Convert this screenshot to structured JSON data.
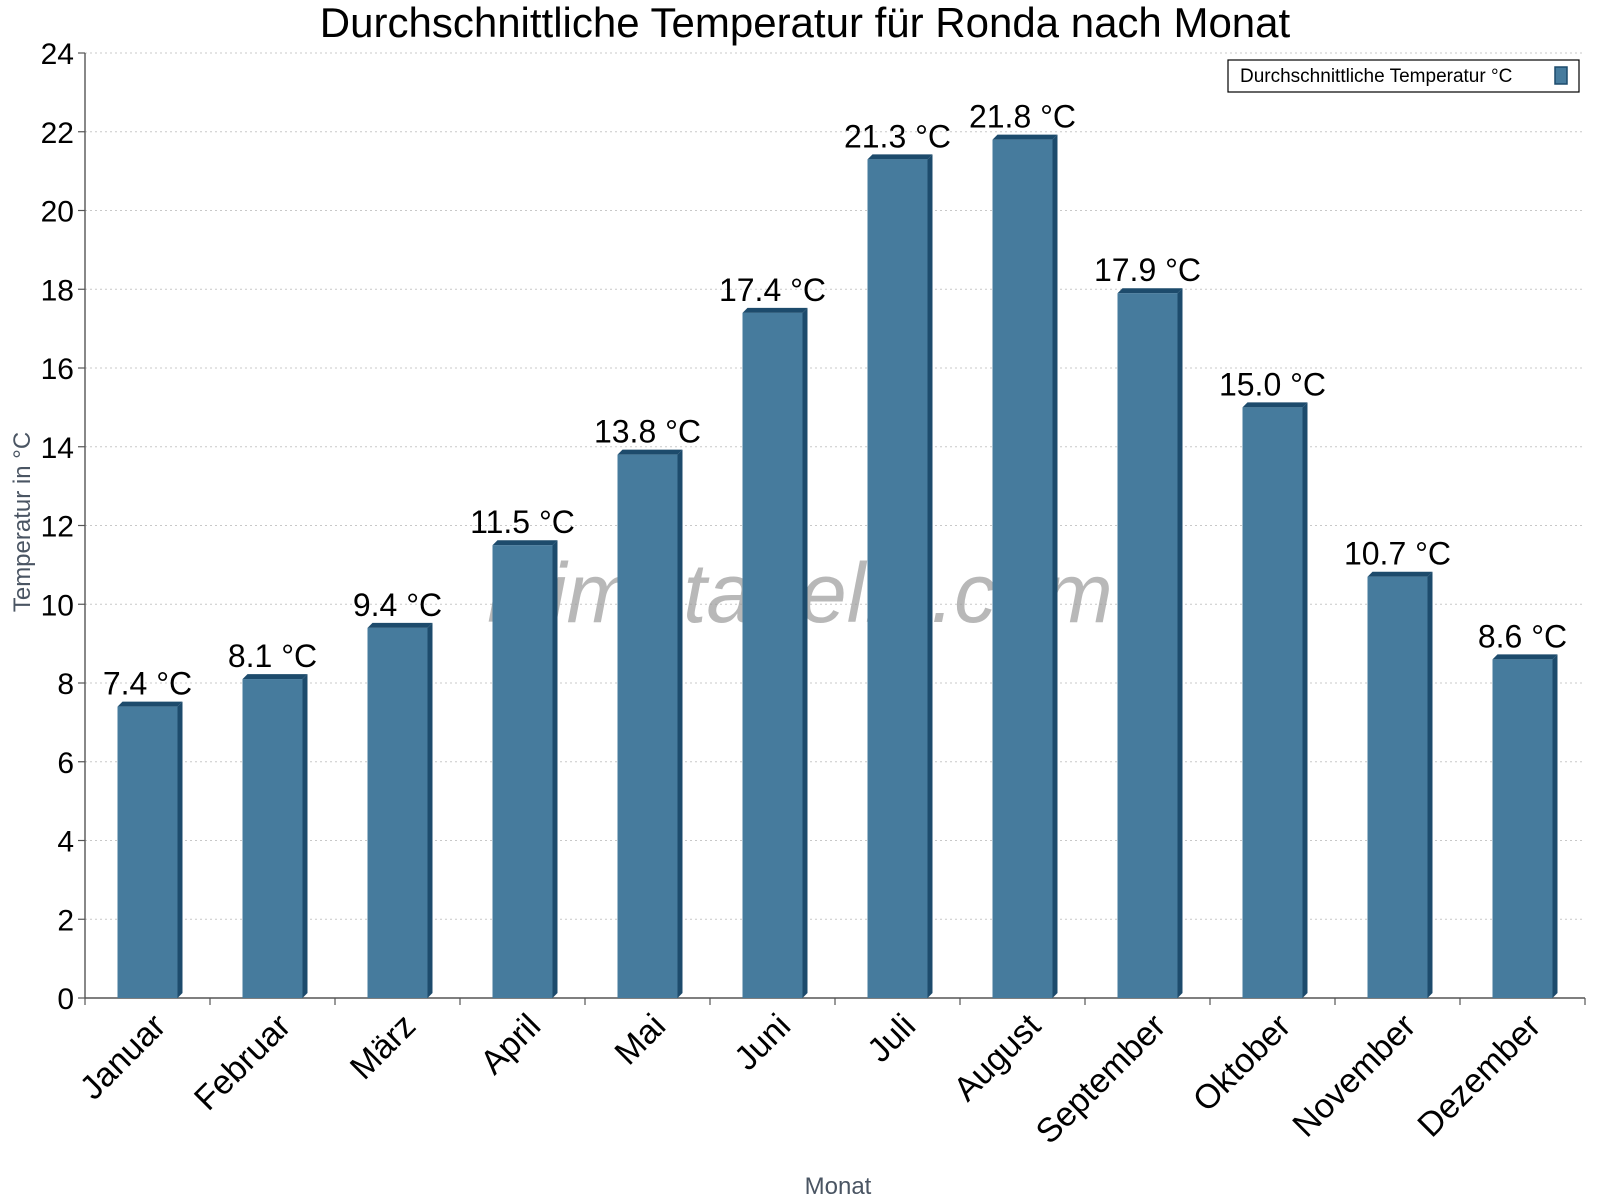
{
  "chart_data": {
    "type": "bar",
    "title": "Durchschnittliche Temperatur für Ronda nach Monat",
    "xlabel": "Monat",
    "ylabel": "Temperatur in °C",
    "ylim": [
      0,
      24
    ],
    "yticks": [
      0,
      2,
      4,
      6,
      8,
      10,
      12,
      14,
      16,
      18,
      20,
      22,
      24
    ],
    "grid": true,
    "legend_position": "top-right",
    "categories": [
      "Januar",
      "Februar",
      "März",
      "April",
      "Mai",
      "Juni",
      "Juli",
      "August",
      "September",
      "Oktober",
      "November",
      "Dezember"
    ],
    "series": [
      {
        "name": "Durchschnittliche Temperatur °C",
        "values": [
          7.4,
          8.1,
          9.4,
          11.5,
          13.8,
          17.4,
          21.3,
          21.8,
          17.9,
          15.0,
          10.7,
          8.6
        ],
        "labels": [
          "7.4 °C",
          "8.1 °C",
          "9.4 °C",
          "11.5 °C",
          "13.8 °C",
          "17.4 °C",
          "21.3 °C",
          "21.8 °C",
          "17.9 °C",
          "15.0 °C",
          "10.7 °C",
          "8.6 °C"
        ],
        "color": "#467b9d",
        "shade_color": "#1d4b6c"
      }
    ],
    "watermark": "klimatabelle.com"
  }
}
